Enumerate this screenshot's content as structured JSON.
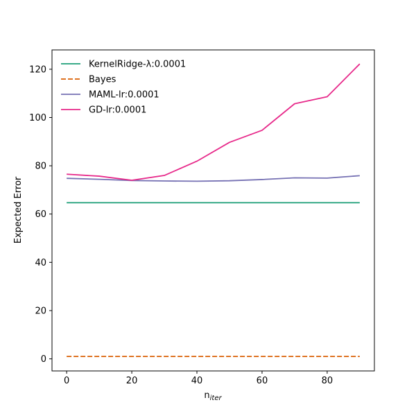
{
  "chart_data": {
    "type": "line",
    "xlabel_main": "n",
    "xlabel_sub": "iter",
    "ylabel": "Expected Error",
    "xlim": [
      -4.5,
      94.5
    ],
    "ylim": [
      -5.0,
      128.0
    ],
    "xticks": [
      0,
      20,
      40,
      60,
      80
    ],
    "yticks": [
      0,
      20,
      40,
      60,
      80,
      100,
      120
    ],
    "x": [
      0,
      10,
      20,
      30,
      40,
      50,
      60,
      70,
      80,
      90
    ],
    "legend_position": "upper-left",
    "series": [
      {
        "name": "KernelRidge-λ:0.0001",
        "color": "#1b9e77",
        "dash": "solid",
        "values": [
          64.7,
          64.7,
          64.7,
          64.7,
          64.7,
          64.7,
          64.7,
          64.7,
          64.7,
          64.7
        ]
      },
      {
        "name": "Bayes",
        "color": "#d95f02",
        "dash": "dashed",
        "values": [
          1.0,
          1.0,
          1.0,
          1.0,
          1.0,
          1.0,
          1.0,
          1.0,
          1.0,
          1.0
        ]
      },
      {
        "name": "MAML-lr:0.0001",
        "color": "#7570b3",
        "dash": "solid",
        "values": [
          74.8,
          74.4,
          73.9,
          73.7,
          73.6,
          73.8,
          74.3,
          75.0,
          74.9,
          75.9
        ]
      },
      {
        "name": "GD-lr:0.0001",
        "color": "#e7298a",
        "dash": "solid",
        "values": [
          76.5,
          75.7,
          74.0,
          76.0,
          81.9,
          89.7,
          94.7,
          105.7,
          108.6,
          122.2
        ]
      }
    ]
  }
}
